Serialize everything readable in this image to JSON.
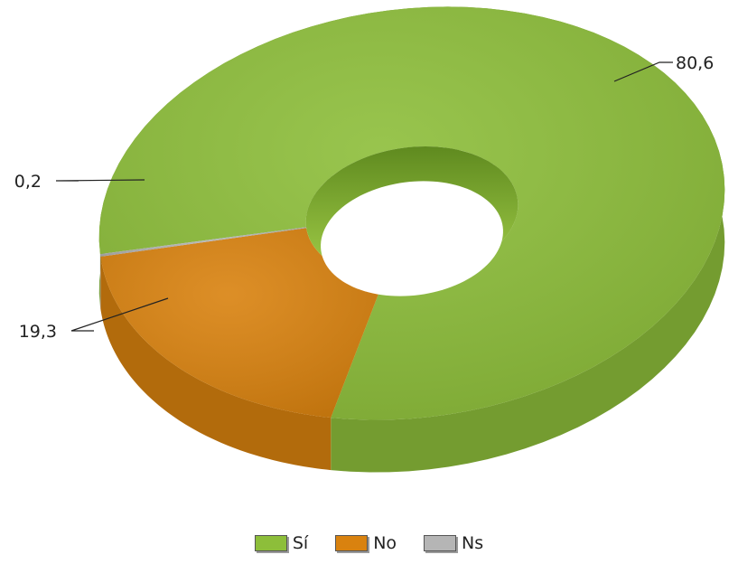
{
  "chart_data": {
    "type": "pie",
    "variant": "3d-donut",
    "categories": [
      "Sí",
      "No",
      "Ns"
    ],
    "values": [
      80.6,
      19.3,
      0.2
    ],
    "data_labels": [
      "80,6",
      "19,3",
      "0,2"
    ],
    "colors": [
      "#8DBE3A",
      "#D9820F",
      "#B5B5B5"
    ],
    "legend_position": "bottom"
  }
}
